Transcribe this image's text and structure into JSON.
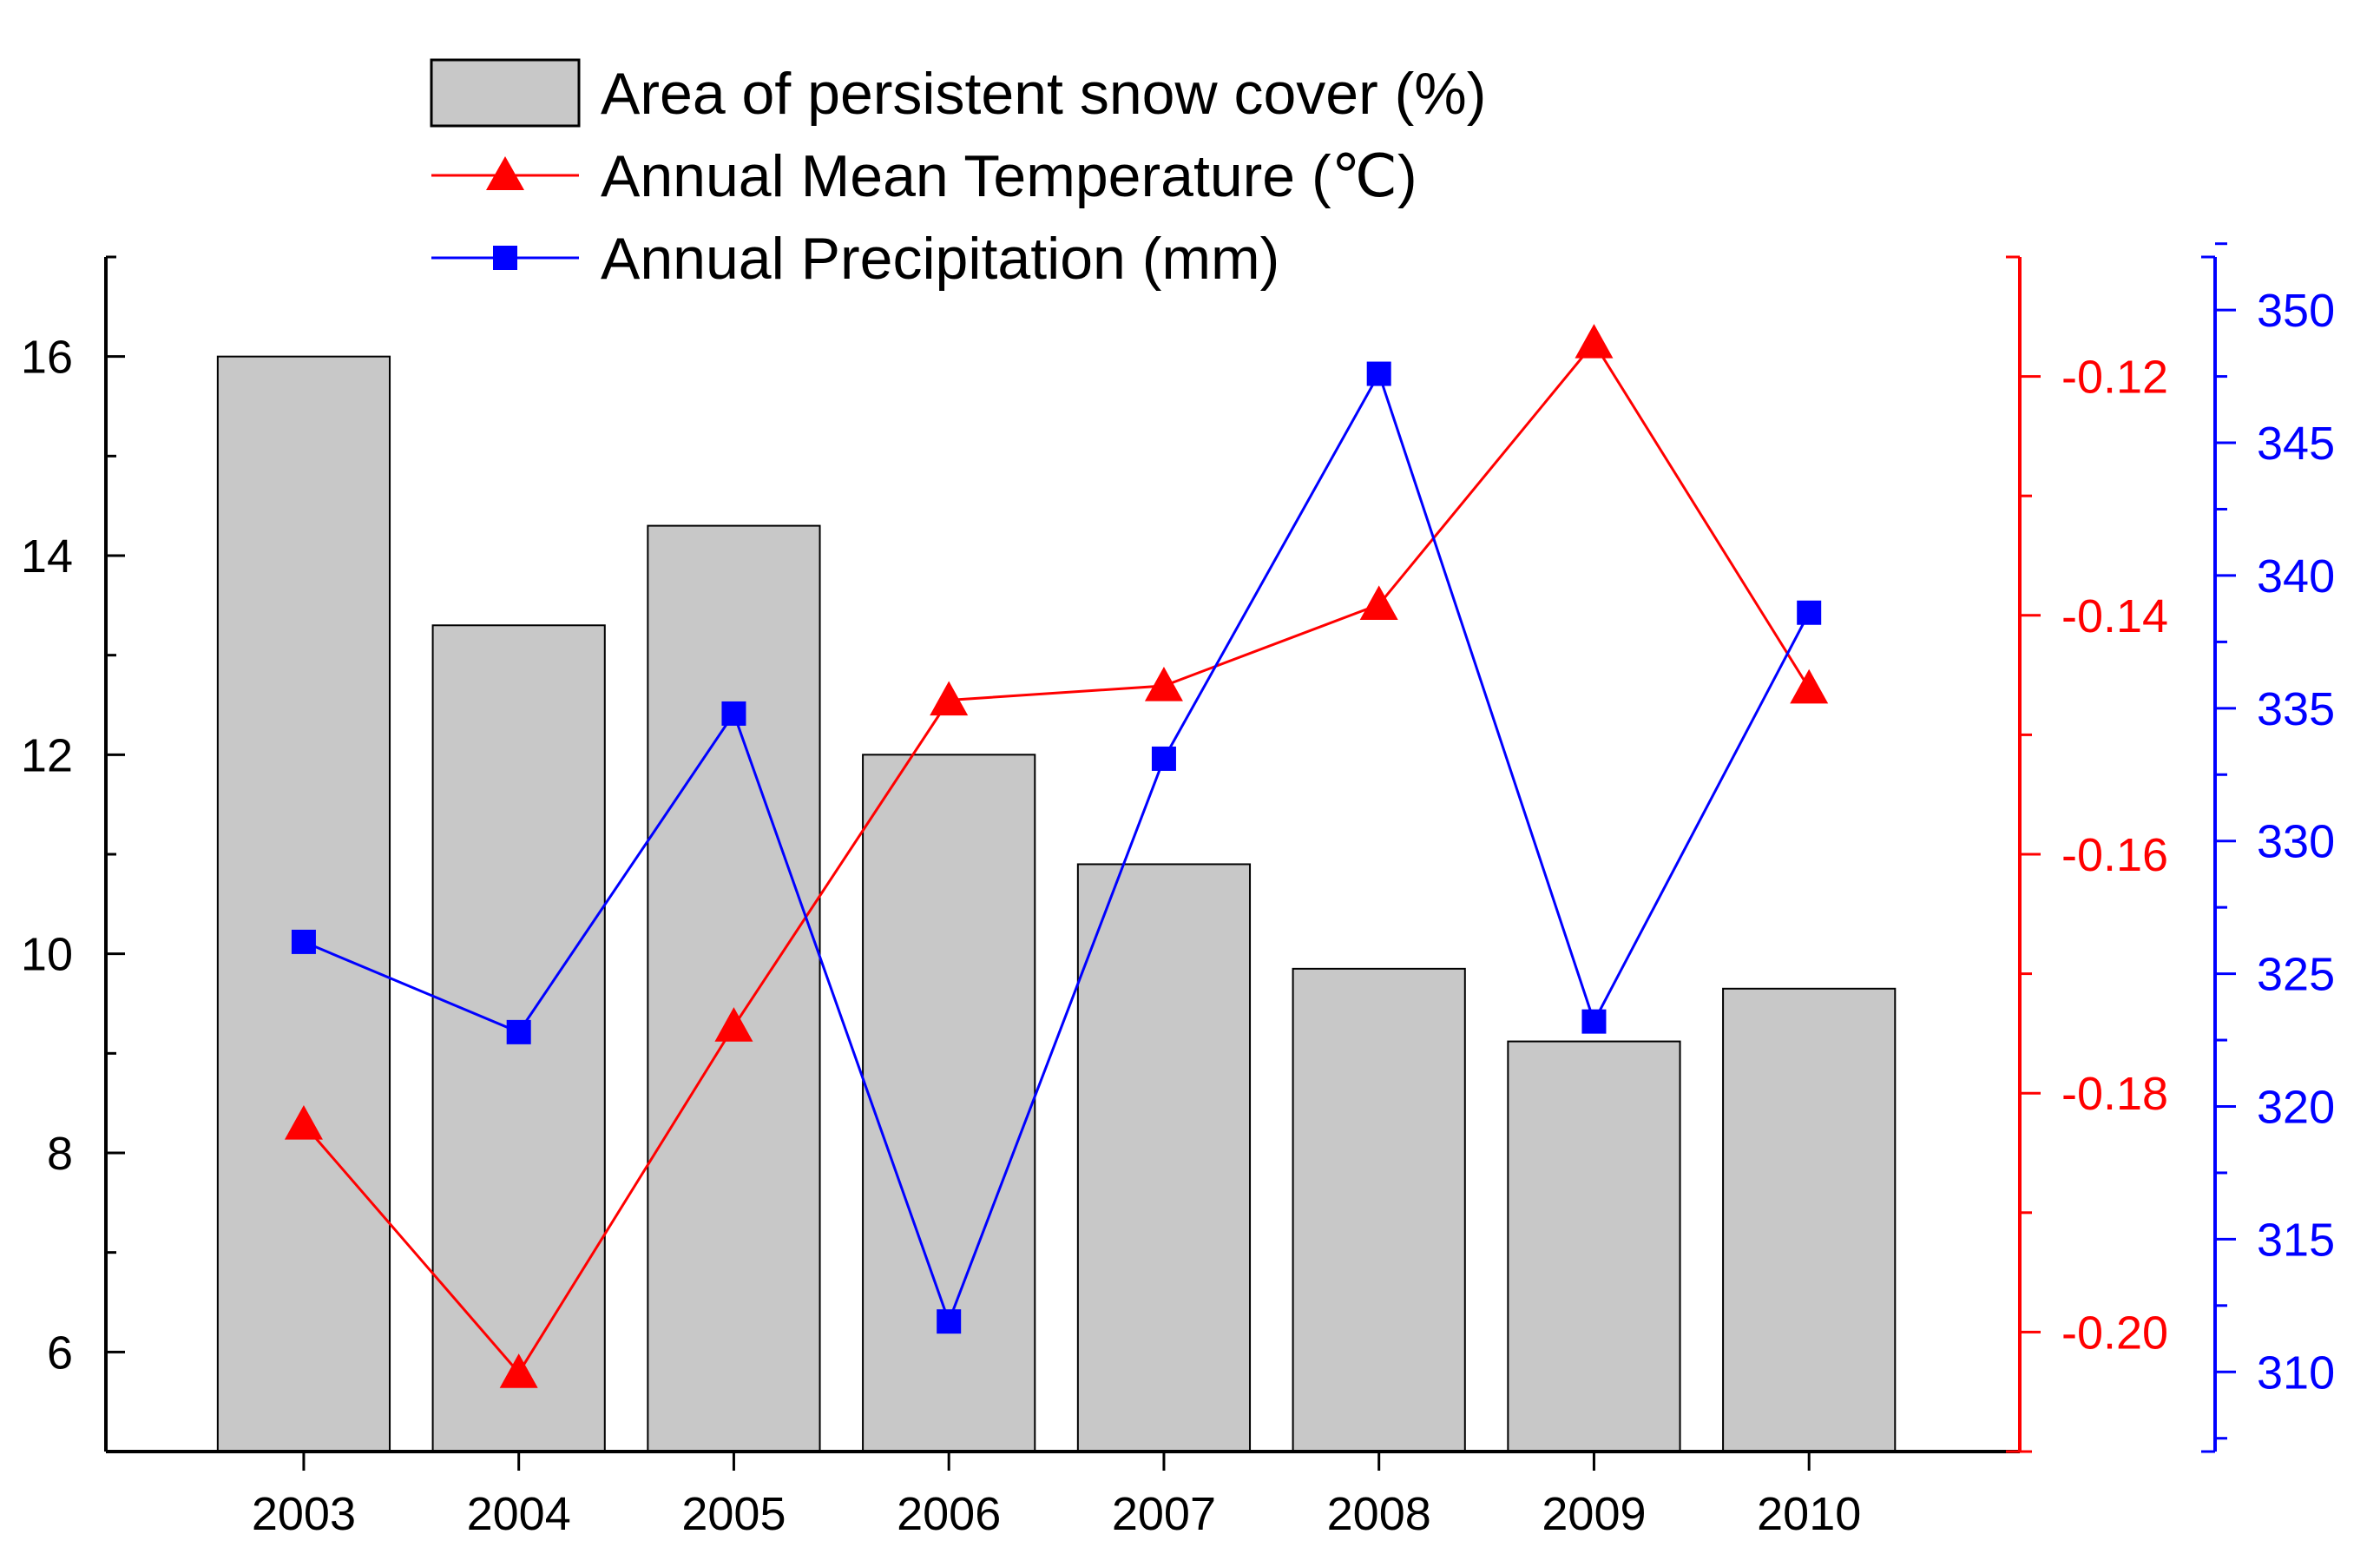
{
  "chart_data": {
    "type": "bar",
    "categories": [
      "2003",
      "2004",
      "2005",
      "2006",
      "2007",
      "2008",
      "2009",
      "2010"
    ],
    "series": [
      {
        "name": "Area of persistent snow cover (%)",
        "kind": "bar",
        "axis": "left",
        "color": "#c8c8c8",
        "values": [
          16.0,
          13.3,
          14.3,
          12.0,
          10.9,
          9.85,
          9.12,
          9.65
        ]
      },
      {
        "name": "Annual Mean Temperature (℃)",
        "kind": "line",
        "marker": "triangle",
        "axis": "right",
        "color": "#ff0000",
        "values": [
          -0.1826,
          -0.2034,
          -0.1744,
          -0.1471,
          -0.1459,
          -0.1391,
          -0.1172,
          -0.1461
        ]
      },
      {
        "name": "Annual Precipitation (mm)",
        "kind": "line",
        "marker": "square",
        "axis": "right-outer",
        "color": "#0000ff",
        "values": [
          326.2,
          322.8,
          334.8,
          311.9,
          333.1,
          347.6,
          323.2,
          338.6
        ]
      }
    ],
    "axes": {
      "left": {
        "range": [
          5,
          17
        ],
        "ticks": [
          "6",
          "8",
          "10",
          "12",
          "14",
          "16"
        ],
        "color": "#000000"
      },
      "right": {
        "range": [
          -0.21,
          -0.11
        ],
        "ticks": [
          "-0.12",
          "-0.14",
          "-0.16",
          "-0.18",
          "-0.20"
        ],
        "color": "#ff0000"
      },
      "right_outer": {
        "range": [
          307,
          352
        ],
        "ticks": [
          "310",
          "315",
          "320",
          "325",
          "330",
          "335",
          "340",
          "345",
          "350"
        ],
        "color": "#0000ff"
      }
    },
    "legend": {
      "position": "top-center",
      "entries": [
        "Area of persistent snow cover (%)",
        "Annual Mean Temperature (℃)",
        "Annual Precipitation (mm)"
      ]
    }
  }
}
